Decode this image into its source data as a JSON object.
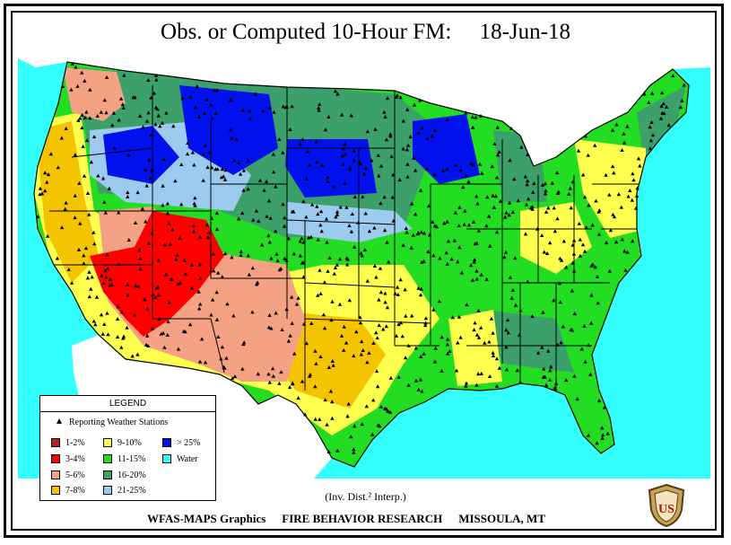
{
  "header": {
    "title": "Obs. or Computed 10-Hour FM:",
    "date": "18-Jun-18"
  },
  "legend": {
    "title": "LEGEND",
    "stations_label": "Reporting Weather Stations",
    "classes": [
      {
        "label": "1-2%",
        "color": "#b22222"
      },
      {
        "label": "3-4%",
        "color": "#ff0000"
      },
      {
        "label": "5-6%",
        "color": "#f4a184"
      },
      {
        "label": "7-8%",
        "color": "#f5c400"
      },
      {
        "label": "9-10%",
        "color": "#ffff4d"
      },
      {
        "label": "11-15%",
        "color": "#22dd22"
      },
      {
        "label": "16-20%",
        "color": "#3ba06a"
      },
      {
        "label": "21-25%",
        "color": "#9ccbef"
      },
      {
        "label": "> 25%",
        "color": "#0011ee"
      },
      {
        "label": "Water",
        "color": "#33ffff"
      }
    ]
  },
  "footer": {
    "interp_note": "(Inv. Dist.² Interp.)",
    "credit_left": "WFAS-MAPS Graphics",
    "credit_center": "FIRE BEHAVIOR RESEARCH",
    "credit_right": "MISSOULA, MT",
    "badge_text": "US"
  }
}
